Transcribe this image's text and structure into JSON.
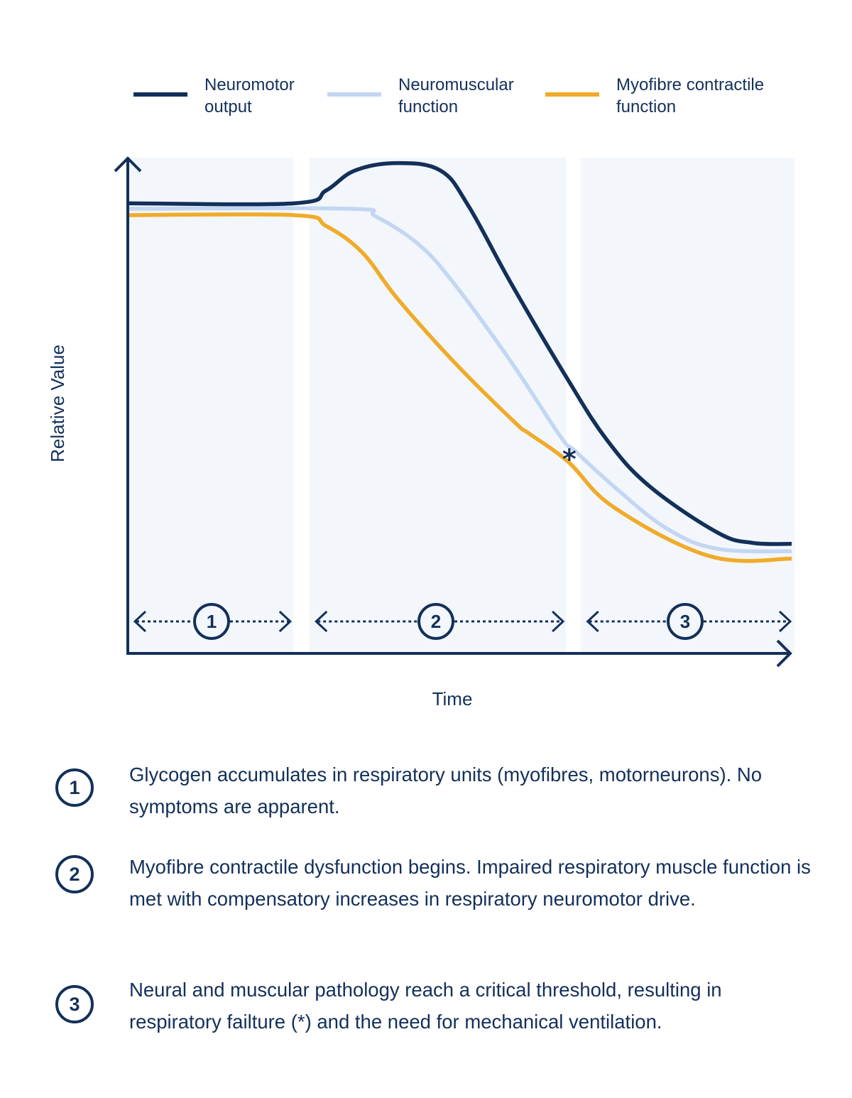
{
  "chart_data": {
    "type": "line",
    "title": "",
    "xlabel": "Time",
    "ylabel": "Relative Value",
    "xlim": [
      0,
      100
    ],
    "ylim": [
      0,
      100
    ],
    "grid": false,
    "legend_position": "top",
    "series": [
      {
        "name": "Neuromotor output",
        "color": "#13305a",
        "x": [
          0,
          25.1,
          29.9,
          34.2,
          40.6,
          47.1,
          51.3,
          57.8,
          66.3,
          72.2,
          78.6,
          88.8,
          94.1,
          100
        ],
        "y": [
          90.8,
          90.8,
          93.4,
          97.4,
          98.9,
          97.4,
          90.3,
          74.5,
          55.2,
          43.0,
          33.7,
          24.4,
          22.3,
          22.1
        ]
      },
      {
        "name": "Neuromuscular function",
        "color": "#c3d6f2",
        "x": [
          0,
          33.2,
          37.4,
          43.9,
          49.2,
          57.8,
          65.2,
          67.4,
          73.8,
          81.3,
          88.8,
          100
        ],
        "y": [
          89.7,
          89.7,
          88.1,
          82.4,
          74.5,
          58.7,
          43.7,
          40.8,
          33.0,
          25.1,
          21.1,
          20.6
        ]
      },
      {
        "name": "Myofibre contractile function",
        "color": "#f0ab2a",
        "x": [
          0,
          25.1,
          29.9,
          35.3,
          40.6,
          49.2,
          58.3,
          60.4,
          66.3,
          73.3,
          87.7,
          100
        ],
        "y": [
          88.4,
          88.4,
          86.2,
          80.9,
          71.6,
          58.7,
          46.6,
          44.4,
          38.7,
          29.4,
          19.6,
          19.1
        ]
      }
    ],
    "phases": [
      {
        "label": "1",
        "start": 0,
        "end": 24.9
      },
      {
        "label": "2",
        "start": 27.3,
        "end": 66.0
      },
      {
        "label": "3",
        "start": 68.2,
        "end": 100.5
      }
    ],
    "annotations": [
      {
        "text": "*",
        "x": 66.5,
        "y": 40.5,
        "meaning": "respiratory failure"
      }
    ],
    "phase_band_color": "#f3f7fc",
    "axis_color": "#13305a"
  },
  "legend": [
    {
      "label_line1": "Neuromotor",
      "label_line2": "output",
      "color": "#13305a"
    },
    {
      "label_line1": "Neuromuscular",
      "label_line2": "function",
      "color": "#c3d6f2"
    },
    {
      "label_line1": "Myofibre contractile",
      "label_line2": "function",
      "color": "#f0ab2a"
    }
  ],
  "notes": [
    {
      "number": "1",
      "text": "Glycogen accumulates in respiratory units (myofibres, motorneurons). No symptoms are apparent."
    },
    {
      "number": "2",
      "text": "Myofibre contractile dysfunction begins. Impaired respiratory muscle function is met with compensatory increases in respiratory neuromotor drive."
    },
    {
      "number": "3",
      "text": "Neural and muscular pathology reach a critical threshold, resulting in respiratory failture (*) and the need for mechanical ventilation."
    }
  ]
}
